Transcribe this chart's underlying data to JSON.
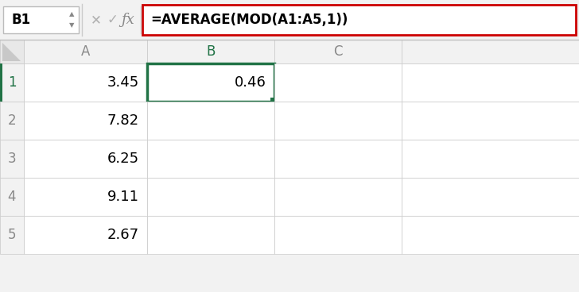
{
  "fig_width": 7.28,
  "fig_height": 3.68,
  "dpi": 100,
  "bg_color": "#f2f2f2",
  "cell_ref": "B1",
  "formula": "=AVERAGE(MOD(A1:A5,1))",
  "col_headers": [
    "A",
    "B",
    "C"
  ],
  "row_numbers": [
    "1",
    "2",
    "3",
    "4",
    "5"
  ],
  "col_a_values": [
    "3.45",
    "7.82",
    "6.25",
    "9.11",
    "2.67"
  ],
  "col_b_row1": "0.46",
  "grid_color": "#c8c8c8",
  "header_bg": "#f2f2f2",
  "active_cell_border": "#217346",
  "formula_bar_border": "#cc0000",
  "active_row_num_color": "#217346",
  "active_col_header_color": "#217346",
  "toolbar_bg": "#f2f2f2",
  "cell_bg": "#ffffff",
  "corner_bg": "#e8e8e8",
  "row_num_inactive_color": "#888888",
  "col_header_inactive_color": "#888888"
}
